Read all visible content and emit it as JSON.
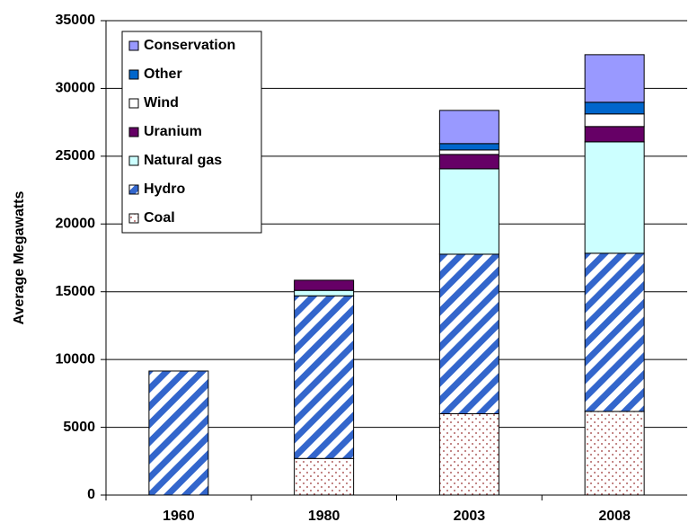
{
  "chart_data": {
    "type": "stacked_bar",
    "y_label": "Average Megawatts",
    "categories": [
      "1960",
      "1980",
      "2003",
      "2008"
    ],
    "series": [
      {
        "name": "Coal",
        "color": "#993333",
        "pattern": "dots",
        "values": [
          0,
          2700,
          6000,
          6170
        ]
      },
      {
        "name": "Hydro",
        "color": "#3366cc",
        "pattern": "hatch",
        "values": [
          9150,
          12000,
          11770,
          11670
        ]
      },
      {
        "name": "Natural gas",
        "color": "#ccffff",
        "values": [
          0,
          400,
          6300,
          8220
        ]
      },
      {
        "name": "Uranium",
        "color": "#660066",
        "values": [
          0,
          750,
          1060,
          1130
        ]
      },
      {
        "name": "Wind",
        "color": "#ffffff",
        "values": [
          0,
          0,
          330,
          930
        ]
      },
      {
        "name": "Other",
        "color": "#0066cc",
        "values": [
          0,
          0,
          470,
          860
        ]
      },
      {
        "name": "Conservation",
        "color": "#9999ff",
        "values": [
          0,
          0,
          2450,
          3510
        ]
      }
    ],
    "ylim": [
      0,
      35000
    ],
    "yticks": [
      0,
      5000,
      10000,
      15000,
      20000,
      25000,
      30000,
      35000
    ],
    "grid": true,
    "legend": "top-left"
  }
}
